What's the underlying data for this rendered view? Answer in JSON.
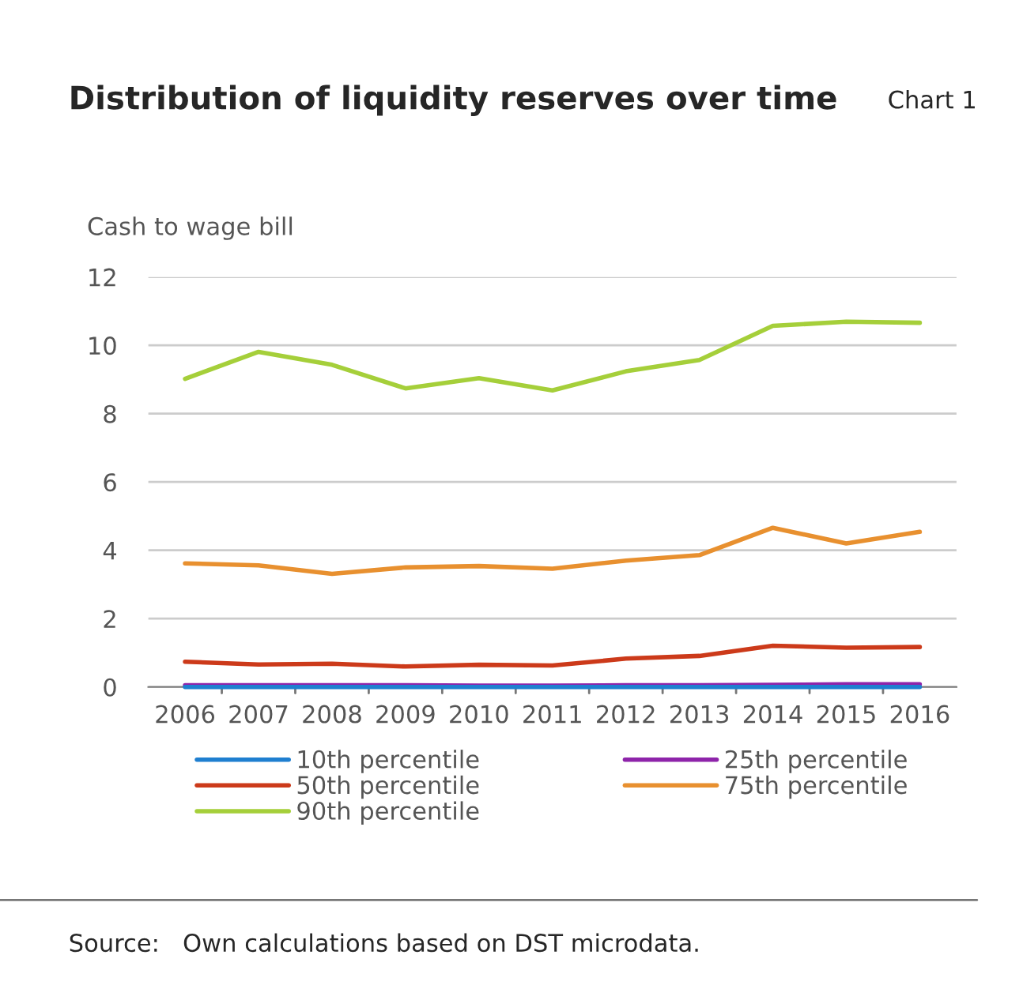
{
  "chart_data": {
    "type": "line",
    "title": "Distribution of liquidity reserves over time",
    "ylabel": "Cash to wage bill",
    "annotations": [
      "Chart 1",
      "Source:   Own calculations based on DST microdata."
    ],
    "categories": [
      "2006",
      "2007",
      "2008",
      "2009",
      "2010",
      "2011",
      "2012",
      "2013",
      "2014",
      "2015",
      "2016"
    ],
    "series": [
      {
        "name": "10th percentile",
        "color": "#1f7fd0",
        "values": [
          0,
          0,
          0,
          0,
          0,
          0,
          0,
          0,
          0,
          0,
          0
        ]
      },
      {
        "name": "25th percentile",
        "color": "#8e24aa",
        "values": [
          0.05,
          0.05,
          0.05,
          0.05,
          0.04,
          0.04,
          0.05,
          0.05,
          0.06,
          0.08,
          0.08
        ]
      },
      {
        "name": "50th percentile",
        "color": "#cc3a1a",
        "values": [
          0.74,
          0.66,
          0.68,
          0.6,
          0.65,
          0.63,
          0.83,
          0.91,
          1.21,
          1.15,
          1.17
        ]
      },
      {
        "name": "75th percentile",
        "color": "#e8902f",
        "values": [
          3.62,
          3.56,
          3.31,
          3.5,
          3.54,
          3.46,
          3.7,
          3.86,
          4.66,
          4.2,
          4.54
        ]
      },
      {
        "name": "90th percentile",
        "color": "#a5cf3a",
        "values": [
          9.02,
          9.81,
          9.43,
          8.74,
          9.04,
          8.68,
          9.24,
          9.57,
          10.57,
          10.69,
          10.66
        ]
      }
    ],
    "ylim": [
      0,
      12
    ],
    "yticks": [
      0,
      2,
      4,
      6,
      8,
      10,
      12
    ],
    "grid": "y",
    "legend": "bottom",
    "marker": "none",
    "line_style": "solid"
  }
}
